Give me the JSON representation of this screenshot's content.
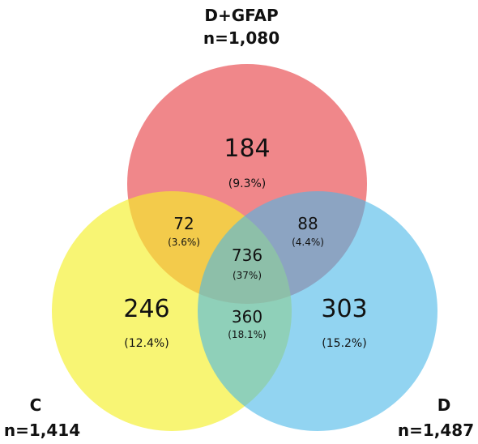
{
  "sets": {
    "dgfap": {
      "name": "D+GFAP",
      "n": "n=1,080",
      "color": "#e8474b"
    },
    "c": {
      "name": "C",
      "n": "n=1,414",
      "color": "#f5ef2a"
    },
    "d": {
      "name": "D",
      "n": "n=1,487",
      "color": "#4ab7e8"
    }
  },
  "regions": {
    "dgfap_only": {
      "count": "184",
      "pct": "(9.3%)"
    },
    "c_only": {
      "count": "246",
      "pct": "(12.4%)"
    },
    "d_only": {
      "count": "303",
      "pct": "(15.2%)"
    },
    "dgfap_c": {
      "count": "72",
      "pct": "(3.6%)"
    },
    "dgfap_d": {
      "count": "88",
      "pct": "(4.4%)"
    },
    "c_d": {
      "count": "360",
      "pct": "(18.1%)"
    },
    "all": {
      "count": "736",
      "pct": "(37%)"
    }
  }
}
